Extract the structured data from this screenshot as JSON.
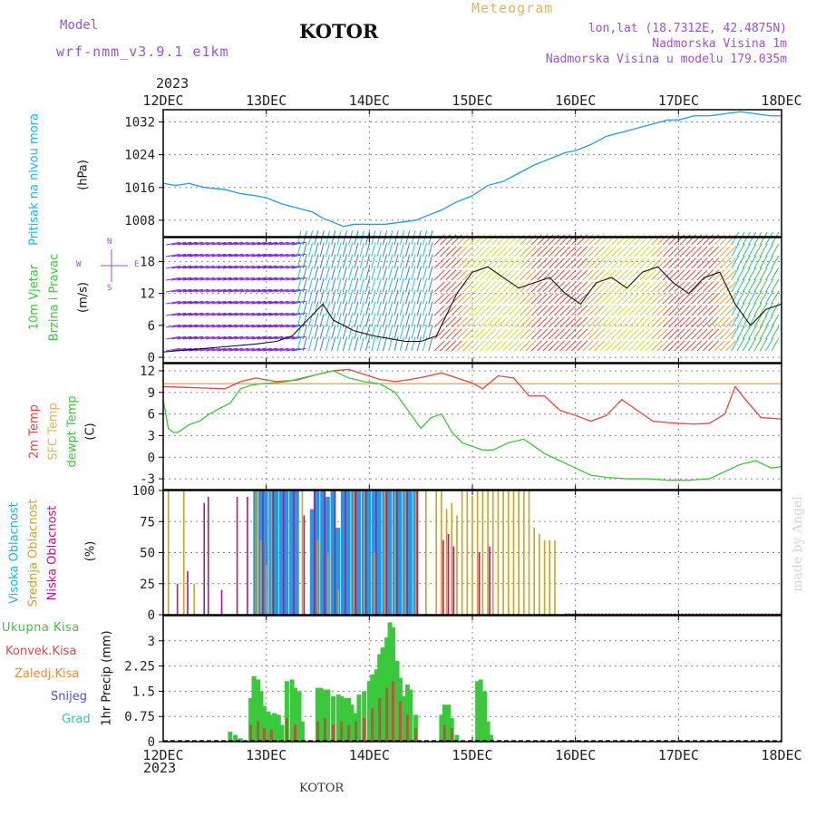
{
  "header": {
    "model_label": "Model",
    "model_name": "wrf-nmm_v3.9.1 e1km",
    "station": "KOTOR",
    "meteogram_label": "Meteogram",
    "lonlat": "lon,lat (18.7312E, 42.4875N)",
    "altitude": "Nadmorska Visina 1m",
    "model_altitude": "Nadmorska Visina u modelu 179.035m",
    "year": "2023"
  },
  "footer": {
    "station": "KOTOR",
    "credit": "made by Angel"
  },
  "colors": {
    "pressure": "#1e9be6",
    "label_cyan": "#1eb4e6",
    "purple": "#a050d2",
    "orange_title": "#e6b450",
    "temp": "#e6463c",
    "sfc": "#e6b450",
    "dew": "#3cc83c",
    "high": "#1e9be6",
    "mid": "#d2a01e",
    "low": "#b4148c",
    "total": "#3cc83c",
    "conv": "#e64646",
    "frz": "#f08c3c",
    "snow": "#5050d2",
    "grad": "#32c8b4",
    "dewline": "#32b432"
  },
  "chart_data": [
    {
      "id": "pressure",
      "type": "line",
      "ylabel": "Pritisak na nivou mora",
      "unit": "(hPa)",
      "ylim": [
        1004,
        1035
      ],
      "yticks": [
        1008,
        1016,
        1024,
        1032
      ],
      "x_dates": [
        "12DEC",
        "13DEC",
        "14DEC",
        "15DEC",
        "16DEC",
        "17DEC",
        "18DEC"
      ],
      "series": [
        {
          "x": [
            0,
            0.12,
            0.25,
            0.4,
            0.6,
            0.75,
            0.9,
            1.0,
            1.15,
            1.3,
            1.45,
            1.55,
            1.65,
            1.75,
            1.85,
            2.0,
            2.15,
            2.3,
            2.45,
            2.55,
            2.7,
            2.85,
            3.0,
            3.15,
            3.3,
            3.45,
            3.6,
            3.75,
            3.9,
            4.0,
            4.15,
            4.3,
            4.45,
            4.6,
            4.75,
            4.9,
            5.0,
            5.15,
            5.3,
            5.45,
            5.6,
            5.75,
            5.9,
            6.0
          ],
          "y": [
            1017,
            1016.5,
            1017,
            1016,
            1015.5,
            1014.5,
            1014,
            1013.5,
            1012,
            1011,
            1010,
            1008.5,
            1007.5,
            1006.5,
            1007,
            1007,
            1007,
            1007.5,
            1008,
            1009,
            1010.5,
            1012.5,
            1014,
            1016.5,
            1017.5,
            1019.5,
            1021.5,
            1023,
            1024.5,
            1025,
            1026.5,
            1028.5,
            1029.5,
            1030.5,
            1031.5,
            1032.5,
            1032.5,
            1033.5,
            1033.5,
            1034,
            1034.5,
            1034,
            1033.5,
            1033.5
          ]
        }
      ]
    },
    {
      "id": "wind",
      "type": "line",
      "ylabel": [
        "10m Vjetar",
        "Brzina i Pravac"
      ],
      "unit": "(m/s)",
      "ylim": [
        -1,
        22.5
      ],
      "yticks": [
        0,
        6,
        12,
        18
      ],
      "compass": {
        "w": "W",
        "e": "E",
        "n": "N",
        "s": "S"
      },
      "series": [
        {
          "name": "speed",
          "x": [
            0,
            0.3,
            0.6,
            0.9,
            1.1,
            1.25,
            1.35,
            1.45,
            1.55,
            1.65,
            1.75,
            1.85,
            1.95,
            2.05,
            2.2,
            2.35,
            2.5,
            2.65,
            2.75,
            2.85,
            3.0,
            3.15,
            3.3,
            3.45,
            3.6,
            3.75,
            3.9,
            4.05,
            4.2,
            4.35,
            4.5,
            4.65,
            4.8,
            4.95,
            5.1,
            5.25,
            5.4,
            5.55,
            5.7,
            5.85,
            6.0
          ],
          "y": [
            1,
            1.5,
            2,
            2.5,
            3,
            4,
            6,
            8,
            10,
            7,
            6,
            5,
            4.5,
            4,
            3.5,
            3,
            3,
            4,
            8,
            12,
            16,
            17,
            15,
            13,
            14,
            15,
            12,
            10,
            14,
            15,
            13,
            16,
            17,
            14,
            12,
            15,
            16,
            10,
            6,
            9,
            10
          ]
        }
      ]
    },
    {
      "id": "temperature",
      "type": "line",
      "ylabel": [
        "2m Temp",
        "SFC Temp",
        "dewpt Temp"
      ],
      "unit": "(C)",
      "ylim": [
        -4.5,
        13
      ],
      "yticks": [
        -3,
        0,
        3,
        6,
        9,
        12
      ],
      "series": [
        {
          "name": "2m Temp",
          "x": [
            0,
            0.2,
            0.4,
            0.6,
            0.75,
            0.9,
            1.1,
            1.3,
            1.5,
            1.65,
            1.8,
            1.95,
            2.1,
            2.25,
            2.4,
            2.55,
            2.7,
            2.85,
            3.0,
            3.1,
            3.25,
            3.4,
            3.55,
            3.7,
            3.85,
            4.0,
            4.15,
            4.3,
            4.45,
            4.6,
            4.75,
            4.9,
            5.0,
            5.15,
            5.3,
            5.45,
            5.55,
            5.65,
            5.8,
            6.0
          ],
          "y": [
            9.8,
            9.7,
            9.6,
            9.5,
            10.5,
            11,
            10.5,
            10.7,
            11.5,
            12,
            12.2,
            11.5,
            10.8,
            10.5,
            10.8,
            11.2,
            11.7,
            11,
            10.3,
            9.5,
            11.3,
            11,
            8.5,
            8.5,
            6.5,
            5.8,
            5,
            5.8,
            8,
            6.5,
            5,
            4.8,
            4.7,
            4.6,
            4.7,
            6,
            9.8,
            8,
            5.5,
            5.3
          ]
        },
        {
          "name": "SFC Temp",
          "x": [
            0,
            6
          ],
          "y": [
            10.2,
            10.2
          ]
        },
        {
          "name": "dewpt Temp",
          "x": [
            0,
            0.05,
            0.1,
            0.15,
            0.25,
            0.35,
            0.45,
            0.55,
            0.65,
            0.75,
            0.85,
            0.95,
            1.05,
            1.2,
            1.35,
            1.5,
            1.65,
            1.8,
            1.95,
            2.1,
            2.25,
            2.4,
            2.5,
            2.6,
            2.7,
            2.8,
            2.9,
            3.0,
            3.1,
            3.2,
            3.35,
            3.5,
            3.6,
            3.7,
            3.85,
            4.0,
            4.15,
            4.3,
            4.5,
            4.7,
            4.9,
            5.1,
            5.3,
            5.45,
            5.6,
            5.75,
            5.9,
            6.0
          ],
          "y": [
            8,
            4,
            3.4,
            3.5,
            4.5,
            5,
            6,
            6.8,
            7.5,
            9.5,
            10,
            10.2,
            10.3,
            10.5,
            11,
            11.5,
            12,
            11,
            10.5,
            10.2,
            9,
            6,
            4,
            5.5,
            6,
            3.5,
            2,
            1.5,
            1,
            1,
            2,
            2.5,
            1.5,
            0.5,
            -0.5,
            -1.5,
            -2.5,
            -2.8,
            -3,
            -3,
            -3.2,
            -3.2,
            -3,
            -2,
            -1,
            -0.5,
            -1.5,
            -1.3
          ]
        }
      ]
    },
    {
      "id": "clouds",
      "type": "bar",
      "ylabel": [
        "Visoka Oblacnost",
        "Srednja Oblacnost",
        "Niska Oblacnost"
      ],
      "unit": "(%)",
      "ylim": [
        0,
        100
      ],
      "yticks": [
        0,
        25,
        50,
        75,
        100
      ],
      "series": [
        {
          "name": "Visoka Oblacnost",
          "x": [
            0.9,
            0.95,
            1.0,
            1.05,
            1.1,
            1.15,
            1.2,
            1.25,
            1.3,
            1.45,
            1.5,
            1.55,
            1.6,
            1.65,
            1.7,
            1.75,
            1.8,
            1.85,
            1.9,
            1.95,
            2.0,
            2.05,
            2.1,
            2.15,
            2.2,
            2.25,
            2.3,
            2.35,
            2.4,
            2.45
          ],
          "values": [
            100,
            100,
            100,
            100,
            100,
            100,
            100,
            100,
            100,
            85,
            100,
            100,
            95,
            100,
            70,
            100,
            100,
            100,
            100,
            100,
            100,
            100,
            100,
            100,
            100,
            100,
            100,
            100,
            100,
            100
          ]
        },
        {
          "name": "Srednja Oblacnost",
          "x": [
            0.05,
            0.2,
            0.3,
            0.9,
            0.95,
            1.0,
            1.05,
            1.35,
            1.5,
            1.6,
            1.7,
            1.85,
            1.95,
            2.05,
            2.15,
            2.25,
            2.35,
            2.45,
            2.55,
            2.65,
            2.7,
            2.75,
            2.8,
            2.85,
            2.9,
            2.95,
            3.0,
            3.05,
            3.1,
            3.15,
            3.2,
            3.25,
            3.3,
            3.35,
            3.4,
            3.45,
            3.5,
            3.55,
            3.6,
            3.65,
            3.7,
            3.75,
            3.8
          ],
          "values": [
            100,
            100,
            25,
            100,
            60,
            40,
            100,
            100,
            60,
            50,
            20,
            100,
            100,
            50,
            100,
            100,
            100,
            100,
            100,
            100,
            100,
            85,
            90,
            80,
            100,
            100,
            95,
            100,
            100,
            100,
            100,
            100,
            100,
            100,
            100,
            100,
            100,
            100,
            70,
            65,
            60,
            60,
            60
          ]
        },
        {
          "name": "Niska Oblacnost",
          "x": [
            0.12,
            0.22,
            0.38,
            0.42,
            0.55,
            0.7,
            0.8,
            0.95,
            1.05,
            1.15,
            1.25,
            1.35,
            1.45,
            1.55,
            1.65,
            1.75,
            1.85,
            1.95,
            2.05,
            2.15,
            2.25,
            2.35,
            2.45,
            2.7,
            2.75,
            2.8,
            3.05,
            3.15
          ],
          "values": [
            25,
            35,
            90,
            95,
            20,
            95,
            95,
            100,
            100,
            100,
            100,
            80,
            100,
            100,
            100,
            100,
            100,
            100,
            100,
            100,
            100,
            100,
            100,
            60,
            65,
            55,
            50,
            55
          ]
        }
      ]
    },
    {
      "id": "precip",
      "type": "bar",
      "ylabel": "1hr Precip (mm)",
      "ylim": [
        0,
        3.75
      ],
      "yticks": [
        0,
        0.75,
        1.5,
        2.25,
        3
      ],
      "legend": [
        "Ukupna Kisa",
        "Konvek.Kisa",
        "Zaledj.Kisa",
        "Snijeg",
        "Grad"
      ],
      "x_labels": [
        "12DEC",
        "13DEC",
        "14DEC",
        "15DEC",
        "16DEC",
        "17DEC",
        "18DEC"
      ],
      "series": [
        {
          "name": "Ukupna Kisa",
          "x": [
            0.65,
            0.7,
            0.75,
            0.85,
            0.88,
            0.92,
            0.95,
            0.98,
            1.02,
            1.05,
            1.08,
            1.12,
            1.15,
            1.2,
            1.25,
            1.28,
            1.32,
            1.35,
            1.5,
            1.53,
            1.57,
            1.6,
            1.65,
            1.7,
            1.73,
            1.77,
            1.8,
            1.83,
            1.87,
            1.9,
            1.95,
            2.0,
            2.03,
            2.07,
            2.1,
            2.13,
            2.17,
            2.2,
            2.23,
            2.27,
            2.3,
            2.33,
            2.37,
            2.4,
            2.45,
            2.7,
            2.73,
            2.77,
            2.8,
            2.85,
            3.05,
            3.08,
            3.12,
            3.15,
            3.18
          ],
          "values": [
            0.3,
            0.2,
            0.1,
            1.3,
            1.95,
            1.85,
            1.5,
            1.05,
            0.9,
            0.8,
            0.85,
            0.8,
            0.5,
            1.8,
            1.85,
            1.6,
            1.5,
            0.6,
            1.6,
            1.6,
            1.55,
            1.55,
            1.35,
            1.4,
            1.35,
            1.3,
            1.3,
            1.1,
            0.85,
            1.4,
            1.5,
            1.8,
            2.0,
            2.15,
            2.6,
            2.8,
            3.1,
            3.55,
            3.4,
            2.4,
            1.9,
            1.35,
            1.7,
            1.55,
            0.8,
            0.8,
            1.1,
            1.1,
            0.7,
            0.2,
            1.8,
            1.85,
            1.5,
            0.6,
            0.2
          ]
        },
        {
          "name": "Konvek.Kisa",
          "x": [
            0.85,
            0.92,
            0.98,
            1.05,
            1.2,
            1.28,
            1.5,
            1.57,
            1.65,
            1.73,
            1.8,
            1.87,
            1.95,
            2.03,
            2.1,
            2.17,
            2.23,
            2.3,
            2.37,
            2.45,
            2.73,
            2.8
          ],
          "values": [
            0.5,
            0.6,
            0.4,
            0.35,
            0.7,
            0.5,
            0.6,
            0.7,
            0.5,
            0.6,
            0.5,
            0.6,
            0.7,
            1.0,
            1.3,
            1.6,
            1.8,
            1.2,
            0.8,
            0.4,
            0.5,
            0.4
          ]
        },
        {
          "name": "Zaledj.Kisa",
          "x": [],
          "values": []
        },
        {
          "name": "Snijeg",
          "x": [],
          "values": []
        },
        {
          "name": "Grad",
          "x": [],
          "values": []
        }
      ]
    }
  ]
}
